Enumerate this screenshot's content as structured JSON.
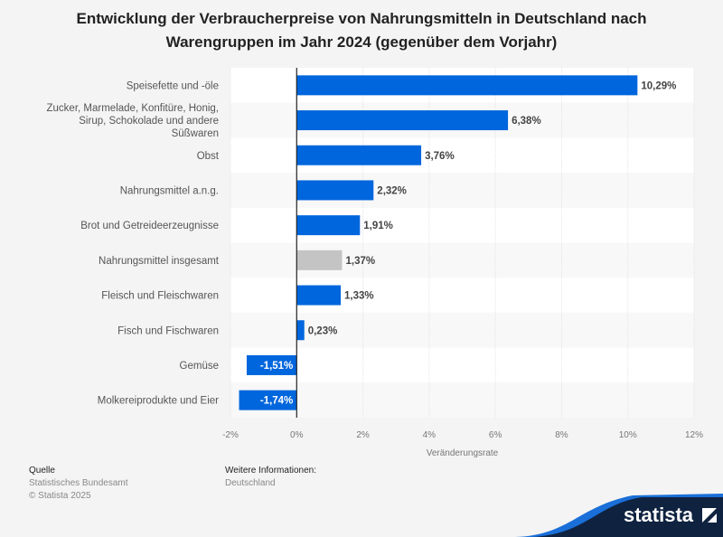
{
  "chart_data": {
    "type": "bar",
    "orientation": "horizontal",
    "title": "Entwicklung der Verbraucherpreise von Nahrungsmitteln in Deutschland nach Warengruppen im Jahr 2024 (gegenüber dem Vorjahr)",
    "xlabel": "Veränderungsrate",
    "categories": [
      "Speisefette und -öle",
      "Zucker, Marmelade, Konfitüre, Honig, Sirup, Schokolade und andere Süßwaren",
      "Obst",
      "Nahrungsmittel a.n.g.",
      "Brot und Getreideerzeugnisse",
      "Nahrungsmittel insgesamt",
      "Fleisch und Fleischwaren",
      "Fisch und Fischwaren",
      "Gemüse",
      "Molkereiprodukte und Eier"
    ],
    "values": [
      10.29,
      6.38,
      3.76,
      2.32,
      1.91,
      1.37,
      1.33,
      0.23,
      -1.51,
      -1.74
    ],
    "data_labels": [
      "10,29%",
      "6,38%",
      "3,76%",
      "2,32%",
      "1,91%",
      "1,37%",
      "1,33%",
      "0,23%",
      "-1,51%",
      "-1,74%"
    ],
    "xlim": [
      -2,
      12
    ],
    "ticks": [
      -2,
      0,
      2,
      4,
      6,
      8,
      10,
      12
    ],
    "tick_labels": [
      "-2%",
      "0%",
      "2%",
      "4%",
      "6%",
      "8%",
      "10%",
      "12%"
    ],
    "grid": true,
    "colors": {
      "bar": "#0066dd",
      "highlight": "#c4c4c4",
      "highlight_category": "Nahrungsmittel insgesamt"
    }
  },
  "footer": {
    "source_heading": "Quelle",
    "source": "Statistisches Bundesamt",
    "copyright": "© Statista 2025",
    "info_heading": "Weitere Informationen:",
    "info": "Deutschland",
    "logo": "statista"
  }
}
